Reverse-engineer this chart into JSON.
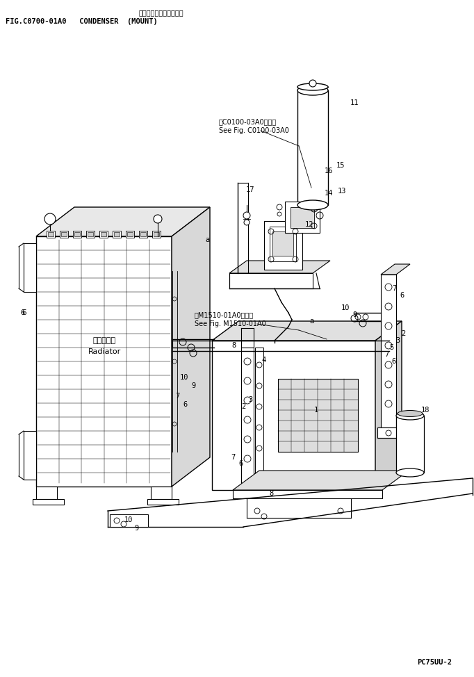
{
  "bg_color": "#ffffff",
  "line_color": "#000000",
  "title_jp": "コンデンサ（トリック）",
  "title_en": "FIG.C0700-01A0   CONDENSER  (MOUNT)",
  "model": "PC75UU-2",
  "ref1_jp": "第C0100-03A0図参照",
  "ref1_en": "See Fig. C0100-03A0",
  "ref2_jp": "第M1510-01A0図参照",
  "ref2_en": "See Fig. M1510-01A0",
  "radiator_label_jp": "ラジエータ",
  "radiator_label_en": "Radiator"
}
